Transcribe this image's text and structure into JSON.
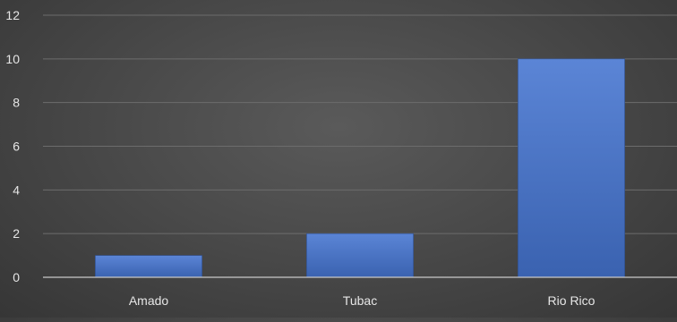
{
  "chart_data": {
    "type": "bar",
    "title": "",
    "xlabel": "",
    "ylabel": "",
    "categories": [
      "Amado",
      "Tubac",
      "Rio Rico"
    ],
    "values": [
      1,
      2,
      10
    ],
    "ylim": [
      0,
      12
    ],
    "yticks": [
      "0",
      "2",
      "4",
      "6",
      "8",
      "10",
      "12"
    ],
    "grid": true,
    "legend": "none",
    "colors": {
      "bar": "#4472c4",
      "bar_top": "#5b85d6",
      "bar_bottom": "#3a62b0",
      "grid": "#6c6c6c",
      "axis": "#c9c9c9",
      "text": "#e6e6e6"
    }
  }
}
